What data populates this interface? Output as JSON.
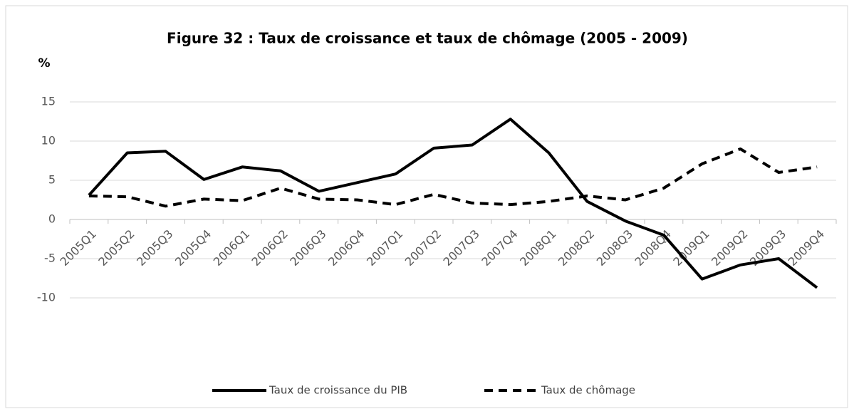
{
  "chart_data": {
    "type": "line",
    "title": "Figure 32 : Taux de croissance et taux de chômage (2005 - 2009)",
    "y_label": "%",
    "categories": [
      "2005Q1",
      "2005Q2",
      "2005Q3",
      "2005Q4",
      "2006Q1",
      "2006Q2",
      "2006Q3",
      "2006Q4",
      "2007Q1",
      "2007Q2",
      "2007Q3",
      "2007Q4",
      "2008Q1",
      "2008Q2",
      "2008Q3",
      "2008Q4",
      "2009Q1",
      "2009Q2",
      "2009Q3",
      "2009Q4"
    ],
    "series": [
      {
        "name": "Taux de croissance du PIB",
        "color": "#000000",
        "style": "solid",
        "values": [
          3.1,
          8.5,
          8.7,
          5.1,
          6.7,
          6.2,
          3.6,
          4.7,
          5.8,
          9.1,
          9.5,
          12.8,
          8.5,
          2.3,
          -0.2,
          -2.0,
          -7.6,
          -5.8,
          -5.0,
          -8.7
        ]
      },
      {
        "name": "Taux de chômage",
        "color": "#000000",
        "style": "dashed",
        "values": [
          3.0,
          2.9,
          1.7,
          2.6,
          2.4,
          4.0,
          2.6,
          2.5,
          1.9,
          3.2,
          2.1,
          1.9,
          2.3,
          3.0,
          2.5,
          4.0,
          7.1,
          9.0,
          6.0,
          6.7
        ]
      }
    ],
    "ylim": [
      -10,
      15
    ],
    "yticks": [
      -10,
      -5,
      0,
      5,
      10,
      15
    ],
    "grid": true,
    "legend": "bottom"
  }
}
